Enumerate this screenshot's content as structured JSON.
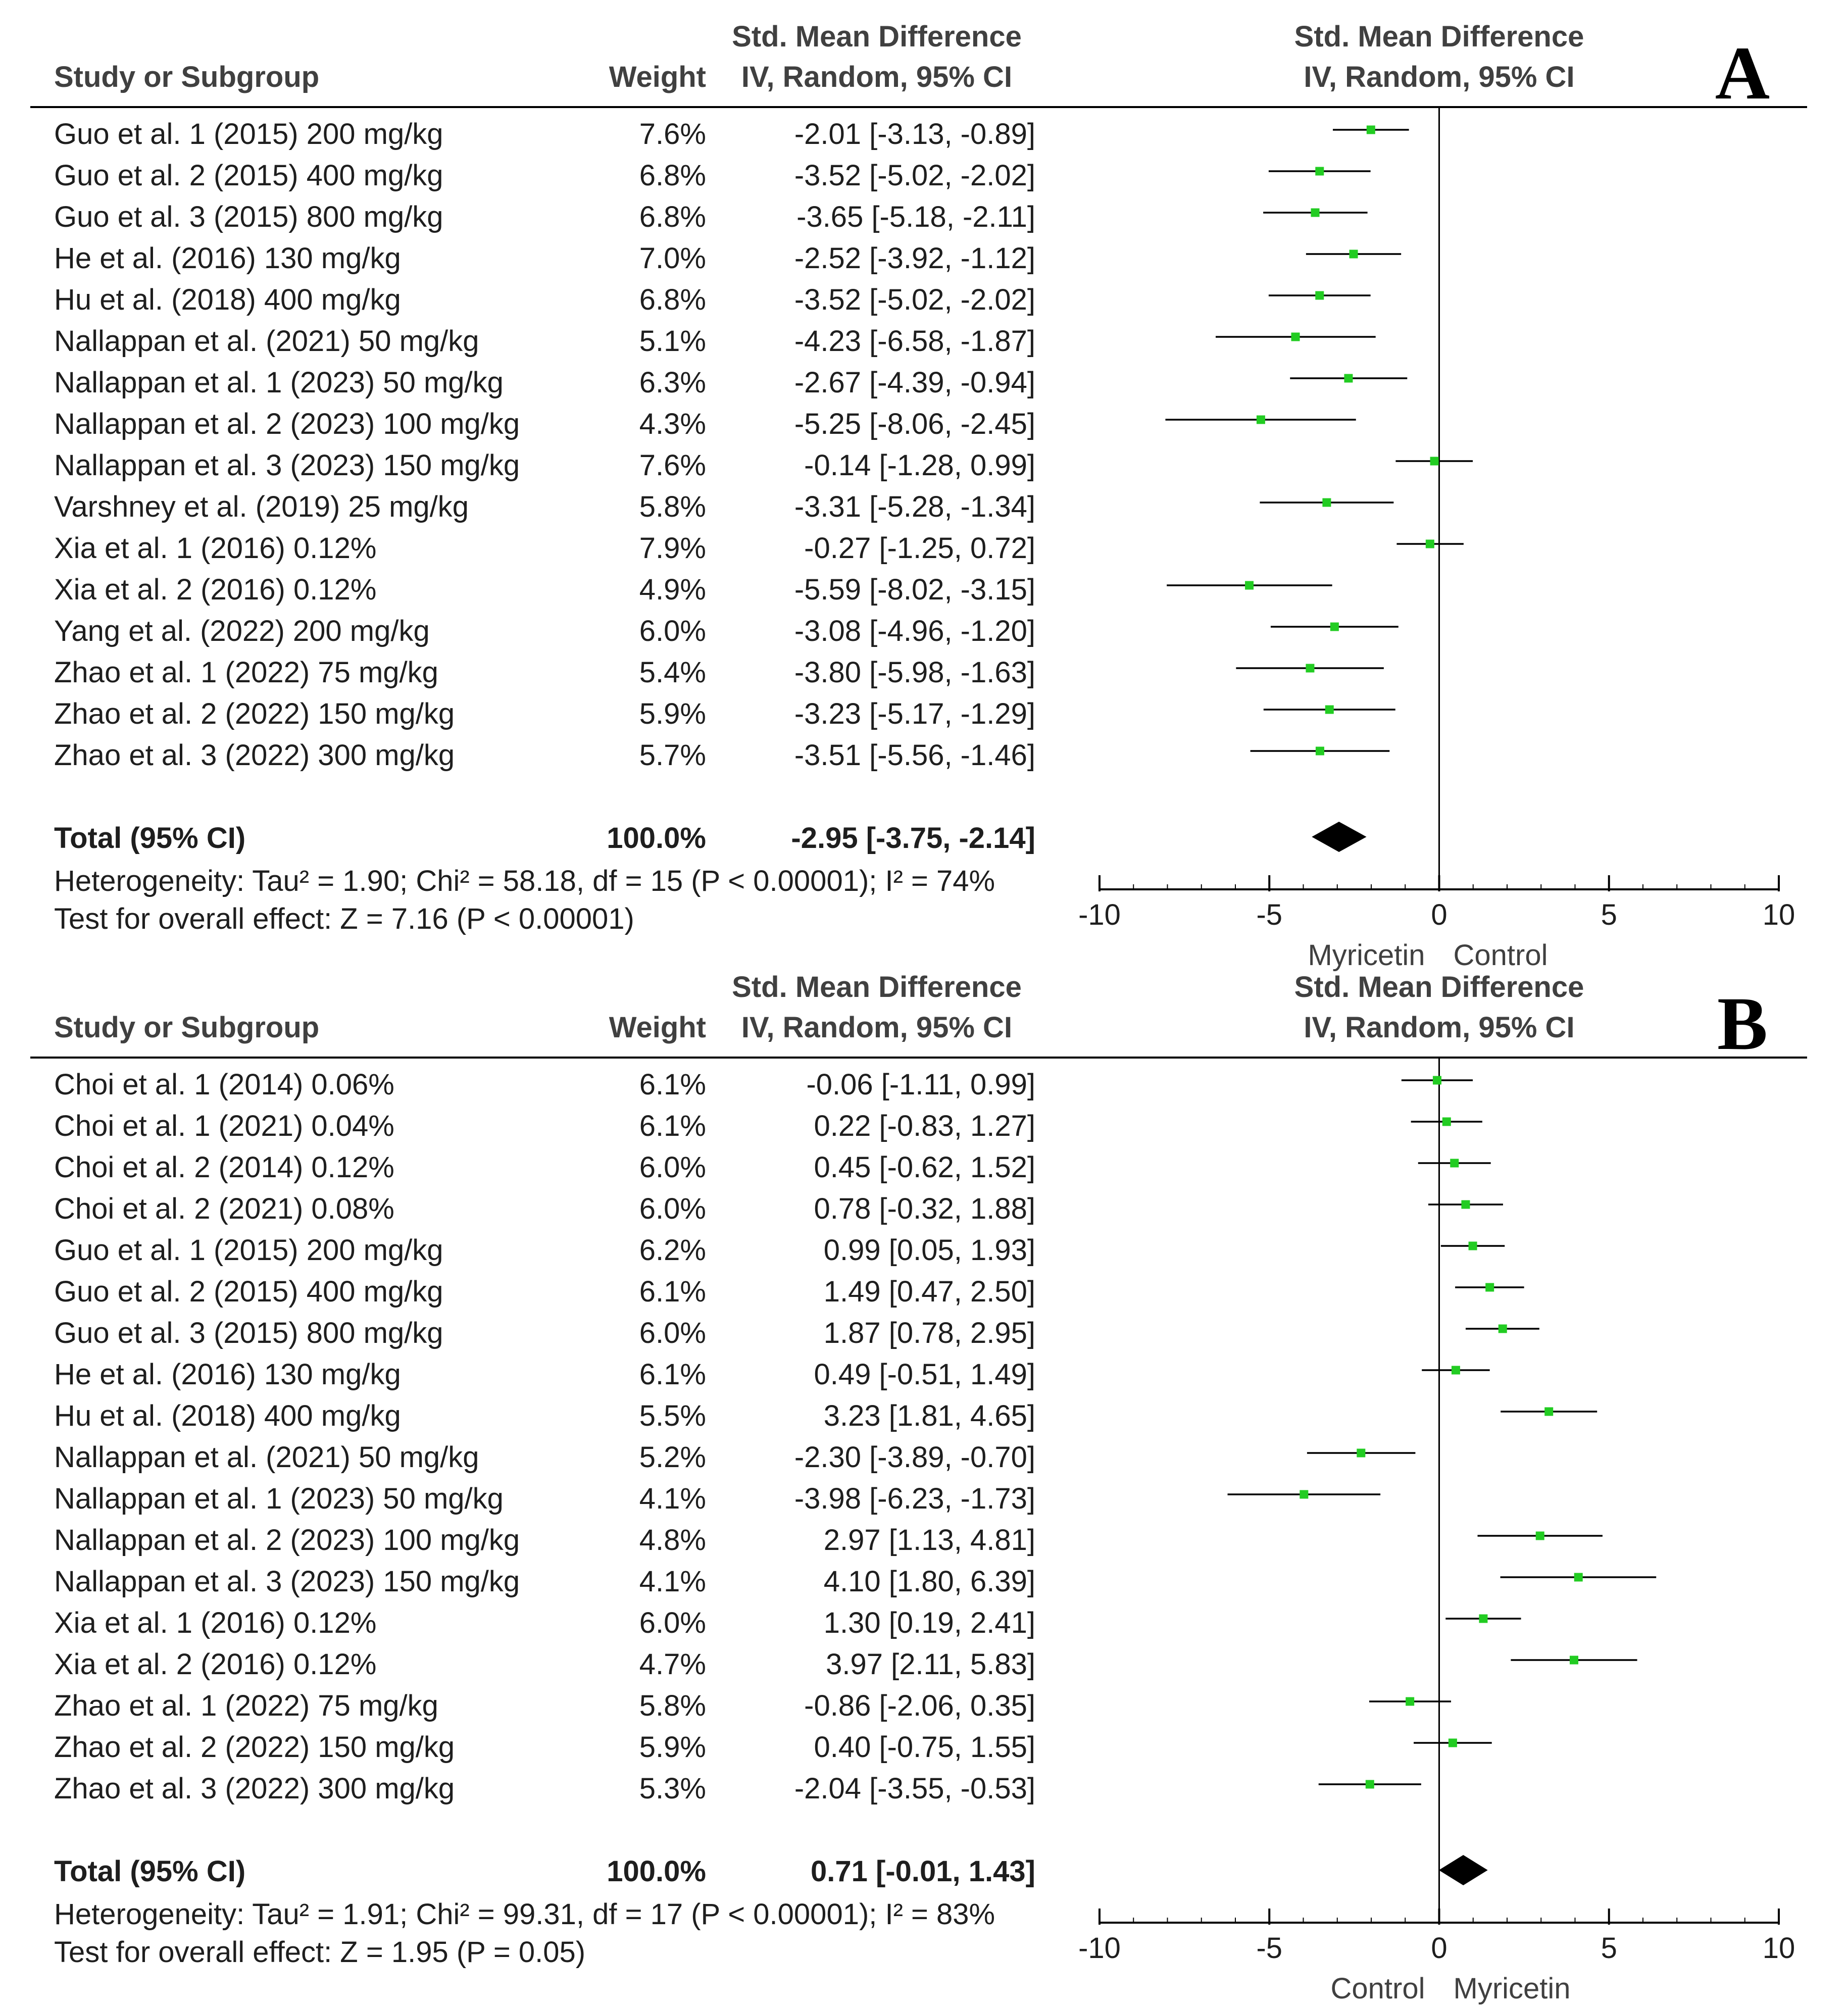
{
  "chart_data": [
    {
      "type": "forest",
      "panel_label": "A",
      "headers": {
        "study": "Study or Subgroup",
        "weight": "Weight",
        "effect_top": "Std. Mean Difference",
        "effect_bottom": "IV, Random, 95% CI",
        "plot_top": "Std. Mean Difference",
        "plot_bottom": "IV, Random, 95% CI"
      },
      "studies": [
        {
          "name": "Guo et al. 1 (2015) 200 mg/kg",
          "weight": "7.6%",
          "ci_text": "-2.01 [-3.13, -0.89]",
          "est": -2.01,
          "lo": -3.13,
          "hi": -0.89
        },
        {
          "name": "Guo et al. 2 (2015) 400 mg/kg",
          "weight": "6.8%",
          "ci_text": "-3.52 [-5.02, -2.02]",
          "est": -3.52,
          "lo": -5.02,
          "hi": -2.02
        },
        {
          "name": "Guo et al. 3 (2015) 800 mg/kg",
          "weight": "6.8%",
          "ci_text": "-3.65 [-5.18, -2.11]",
          "est": -3.65,
          "lo": -5.18,
          "hi": -2.11
        },
        {
          "name": "He et al. (2016) 130 mg/kg",
          "weight": "7.0%",
          "ci_text": "-2.52 [-3.92, -1.12]",
          "est": -2.52,
          "lo": -3.92,
          "hi": -1.12
        },
        {
          "name": "Hu et al. (2018) 400 mg/kg",
          "weight": "6.8%",
          "ci_text": "-3.52 [-5.02, -2.02]",
          "est": -3.52,
          "lo": -5.02,
          "hi": -2.02
        },
        {
          "name": "Nallappan et al. (2021) 50 mg/kg",
          "weight": "5.1%",
          "ci_text": "-4.23 [-6.58, -1.87]",
          "est": -4.23,
          "lo": -6.58,
          "hi": -1.87
        },
        {
          "name": "Nallappan et al. 1 (2023) 50 mg/kg",
          "weight": "6.3%",
          "ci_text": "-2.67 [-4.39, -0.94]",
          "est": -2.67,
          "lo": -4.39,
          "hi": -0.94
        },
        {
          "name": "Nallappan et al. 2 (2023) 100 mg/kg",
          "weight": "4.3%",
          "ci_text": "-5.25 [-8.06, -2.45]",
          "est": -5.25,
          "lo": -8.06,
          "hi": -2.45
        },
        {
          "name": "Nallappan et al. 3 (2023) 150 mg/kg",
          "weight": "7.6%",
          "ci_text": "-0.14 [-1.28, 0.99]",
          "est": -0.14,
          "lo": -1.28,
          "hi": 0.99
        },
        {
          "name": "Varshney et al. (2019) 25 mg/kg",
          "weight": "5.8%",
          "ci_text": "-3.31 [-5.28, -1.34]",
          "est": -3.31,
          "lo": -5.28,
          "hi": -1.34
        },
        {
          "name": "Xia et al. 1 (2016) 0.12%",
          "weight": "7.9%",
          "ci_text": "-0.27 [-1.25, 0.72]",
          "est": -0.27,
          "lo": -1.25,
          "hi": 0.72
        },
        {
          "name": "Xia et al. 2 (2016) 0.12%",
          "weight": "4.9%",
          "ci_text": "-5.59 [-8.02, -3.15]",
          "est": -5.59,
          "lo": -8.02,
          "hi": -3.15
        },
        {
          "name": "Yang et al. (2022) 200 mg/kg",
          "weight": "6.0%",
          "ci_text": "-3.08 [-4.96, -1.20]",
          "est": -3.08,
          "lo": -4.96,
          "hi": -1.2
        },
        {
          "name": "Zhao et al. 1 (2022) 75 mg/kg",
          "weight": "5.4%",
          "ci_text": "-3.80 [-5.98, -1.63]",
          "est": -3.8,
          "lo": -5.98,
          "hi": -1.63
        },
        {
          "name": "Zhao et al. 2 (2022) 150 mg/kg",
          "weight": "5.9%",
          "ci_text": "-3.23 [-5.17, -1.29]",
          "est": -3.23,
          "lo": -5.17,
          "hi": -1.29
        },
        {
          "name": "Zhao et al. 3 (2022) 300 mg/kg",
          "weight": "5.7%",
          "ci_text": "-3.51 [-5.56, -1.46]",
          "est": -3.51,
          "lo": -5.56,
          "hi": -1.46
        }
      ],
      "total": {
        "name": "Total (95% CI)",
        "weight": "100.0%",
        "ci_text": "-2.95 [-3.75, -2.14]",
        "est": -2.95,
        "lo": -3.75,
        "hi": -2.14
      },
      "heterogeneity": "Heterogeneity: Tau² = 1.90; Chi² = 58.18, df = 15 (P < 0.00001); I² = 74%",
      "overall_effect": "Test for overall effect: Z = 7.16 (P < 0.00001)",
      "axis": {
        "min": -10,
        "max": 10,
        "ticks": [
          -10,
          -5,
          0,
          5,
          10
        ],
        "tick_labels": [
          "-10",
          "-5",
          "0",
          "5",
          "10"
        ]
      },
      "favours_left": "Myricetin",
      "favours_right": "Control",
      "colors": {
        "point": "#22cc22",
        "line": "#000000",
        "diamond": "#000000"
      }
    },
    {
      "type": "forest",
      "panel_label": "B",
      "headers": {
        "study": "Study or Subgroup",
        "weight": "Weight",
        "effect_top": "Std. Mean Difference",
        "effect_bottom": "IV, Random, 95% CI",
        "plot_top": "Std. Mean Difference",
        "plot_bottom": "IV, Random, 95% CI"
      },
      "studies": [
        {
          "name": "Choi et al. 1 (2014) 0.06%",
          "weight": "6.1%",
          "ci_text": "-0.06 [-1.11, 0.99]",
          "est": -0.06,
          "lo": -1.11,
          "hi": 0.99
        },
        {
          "name": "Choi et al. 1 (2021) 0.04%",
          "weight": "6.1%",
          "ci_text": "0.22 [-0.83, 1.27]",
          "est": 0.22,
          "lo": -0.83,
          "hi": 1.27
        },
        {
          "name": "Choi et al. 2 (2014) 0.12%",
          "weight": "6.0%",
          "ci_text": "0.45 [-0.62, 1.52]",
          "est": 0.45,
          "lo": -0.62,
          "hi": 1.52
        },
        {
          "name": "Choi et al. 2 (2021) 0.08%",
          "weight": "6.0%",
          "ci_text": "0.78 [-0.32, 1.88]",
          "est": 0.78,
          "lo": -0.32,
          "hi": 1.88
        },
        {
          "name": "Guo et al. 1 (2015) 200 mg/kg",
          "weight": "6.2%",
          "ci_text": "0.99 [0.05, 1.93]",
          "est": 0.99,
          "lo": 0.05,
          "hi": 1.93
        },
        {
          "name": "Guo et al. 2 (2015) 400 mg/kg",
          "weight": "6.1%",
          "ci_text": "1.49 [0.47, 2.50]",
          "est": 1.49,
          "lo": 0.47,
          "hi": 2.5
        },
        {
          "name": "Guo et al. 3 (2015) 800 mg/kg",
          "weight": "6.0%",
          "ci_text": "1.87 [0.78, 2.95]",
          "est": 1.87,
          "lo": 0.78,
          "hi": 2.95
        },
        {
          "name": "He et al. (2016) 130 mg/kg",
          "weight": "6.1%",
          "ci_text": "0.49 [-0.51, 1.49]",
          "est": 0.49,
          "lo": -0.51,
          "hi": 1.49
        },
        {
          "name": "Hu et al. (2018) 400 mg/kg",
          "weight": "5.5%",
          "ci_text": "3.23 [1.81, 4.65]",
          "est": 3.23,
          "lo": 1.81,
          "hi": 4.65
        },
        {
          "name": "Nallappan et al. (2021) 50 mg/kg",
          "weight": "5.2%",
          "ci_text": "-2.30 [-3.89, -0.70]",
          "est": -2.3,
          "lo": -3.89,
          "hi": -0.7
        },
        {
          "name": "Nallappan et al. 1 (2023) 50 mg/kg",
          "weight": "4.1%",
          "ci_text": "-3.98 [-6.23, -1.73]",
          "est": -3.98,
          "lo": -6.23,
          "hi": -1.73
        },
        {
          "name": "Nallappan et al. 2 (2023) 100 mg/kg",
          "weight": "4.8%",
          "ci_text": "2.97 [1.13, 4.81]",
          "est": 2.97,
          "lo": 1.13,
          "hi": 4.81
        },
        {
          "name": "Nallappan et al. 3 (2023) 150 mg/kg",
          "weight": "4.1%",
          "ci_text": "4.10 [1.80, 6.39]",
          "est": 4.1,
          "lo": 1.8,
          "hi": 6.39
        },
        {
          "name": "Xia et al. 1 (2016) 0.12%",
          "weight": "6.0%",
          "ci_text": "1.30 [0.19, 2.41]",
          "est": 1.3,
          "lo": 0.19,
          "hi": 2.41
        },
        {
          "name": "Xia et al. 2 (2016) 0.12%",
          "weight": "4.7%",
          "ci_text": "3.97 [2.11, 5.83]",
          "est": 3.97,
          "lo": 2.11,
          "hi": 5.83
        },
        {
          "name": "Zhao et al. 1 (2022) 75 mg/kg",
          "weight": "5.8%",
          "ci_text": "-0.86 [-2.06, 0.35]",
          "est": -0.86,
          "lo": -2.06,
          "hi": 0.35
        },
        {
          "name": "Zhao et al. 2 (2022) 150 mg/kg",
          "weight": "5.9%",
          "ci_text": "0.40 [-0.75, 1.55]",
          "est": 0.4,
          "lo": -0.75,
          "hi": 1.55
        },
        {
          "name": "Zhao et al. 3 (2022) 300 mg/kg",
          "weight": "5.3%",
          "ci_text": "-2.04 [-3.55, -0.53]",
          "est": -2.04,
          "lo": -3.55,
          "hi": -0.53
        }
      ],
      "total": {
        "name": "Total (95% CI)",
        "weight": "100.0%",
        "ci_text": "0.71 [-0.01, 1.43]",
        "est": 0.71,
        "lo": -0.01,
        "hi": 1.43
      },
      "heterogeneity": "Heterogeneity: Tau² = 1.91; Chi² = 99.31, df = 17 (P < 0.00001); I² = 83%",
      "overall_effect": "Test for overall effect: Z = 1.95 (P = 0.05)",
      "axis": {
        "min": -10,
        "max": 10,
        "ticks": [
          -10,
          -5,
          0,
          5,
          10
        ],
        "tick_labels": [
          "-10",
          "-5",
          "0",
          "5",
          "10"
        ]
      },
      "favours_left": "Control",
      "favours_right": "Myricetin",
      "colors": {
        "point": "#22cc22",
        "line": "#000000",
        "diamond": "#000000"
      }
    }
  ]
}
